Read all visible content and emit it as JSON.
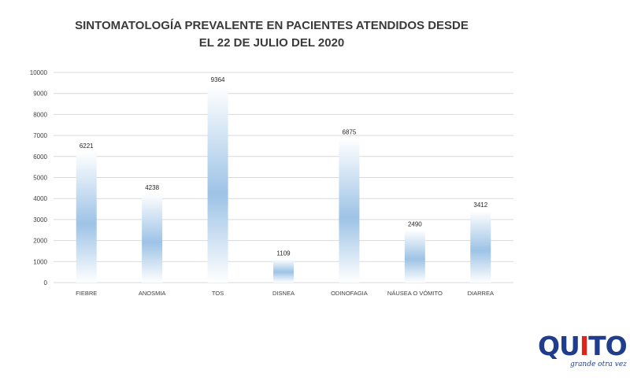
{
  "title_line1": "SINTOMATOLOGÍA PREVALENTE EN PACIENTES ATENDIDOS DESDE",
  "title_line2": "EL 22 DE JULIO DEL 2020",
  "logo": {
    "wordmark_start": "QU",
    "wordmark_mid": "I",
    "wordmark_end": "TO",
    "slogan": "grande otra vez"
  },
  "chart_data": {
    "type": "bar",
    "title": "SINTOMATOLOGÍA PREVALENTE EN PACIENTES ATENDIDOS DESDE EL 22 DE JULIO DEL 2020",
    "xlabel": "",
    "ylabel": "",
    "categories": [
      "FIEBRE",
      "ANOSMIA",
      "TOS",
      "DISNEA",
      "ODINOFAGIA",
      "NÁUSEA O VÓMITO",
      "DIARREA"
    ],
    "values": [
      6221,
      4238,
      9364,
      1109,
      6875,
      2490,
      3412
    ],
    "ylim": [
      0,
      10000
    ],
    "yticks": [
      0,
      1000,
      2000,
      3000,
      4000,
      5000,
      6000,
      7000,
      8000,
      9000,
      10000
    ],
    "grid": true,
    "data_labels": true,
    "bar_color": "#9dc3e6",
    "gridline_color": "#d9d9d9"
  }
}
